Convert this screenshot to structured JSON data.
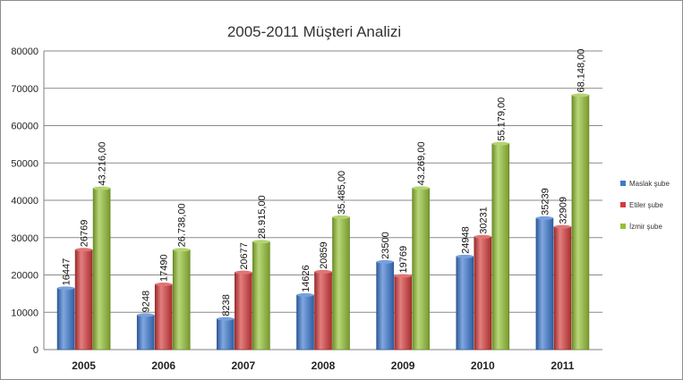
{
  "chart_data": {
    "type": "bar",
    "title": "2005-2011 Müşteri Analizi",
    "xlabel": "",
    "ylabel": "",
    "categories": [
      "2005",
      "2006",
      "2007",
      "2008",
      "2009",
      "2010",
      "2011"
    ],
    "ylim": [
      0,
      80000
    ],
    "yticks": [
      0,
      10000,
      20000,
      30000,
      40000,
      50000,
      60000,
      70000,
      80000
    ],
    "grid": true,
    "legend_position": "right",
    "series": [
      {
        "name": "Maslak şube",
        "color": "#3c78d0",
        "values": [
          16447,
          9248,
          8238,
          14626,
          23500,
          24948,
          35239
        ],
        "labels": [
          "16447",
          "9248",
          "8238",
          "14626",
          "23500",
          "24948",
          "35239"
        ]
      },
      {
        "name": "Etiler şube",
        "color": "#d43a3a",
        "values": [
          26769,
          17490,
          20677,
          20859,
          19769,
          30231,
          32909
        ],
        "labels": [
          "26769",
          "17490",
          "20677",
          "20859",
          "19769",
          "30231",
          "32909"
        ]
      },
      {
        "name": "İzmir şube",
        "color": "#94c034",
        "values": [
          43216,
          26738,
          28915,
          35485,
          43269,
          55179,
          68148
        ],
        "labels": [
          "43.216,00",
          "26.738,00",
          "28.915,00",
          "35.485,00",
          "43.269,00",
          "55.179,00",
          "68.148,00"
        ]
      }
    ]
  }
}
